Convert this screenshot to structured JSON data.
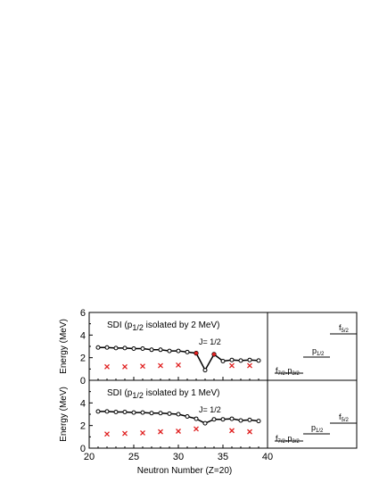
{
  "chart_data": [
    {
      "type": "line",
      "panel": "top",
      "title": "SDI (p1/2 isolated by 2 MeV)",
      "title_main": "SDI (p",
      "title_sub": "1/2",
      "title_rest": " isolated by 2 MeV)",
      "ylabel": "Energy (MeV)",
      "xlabel": "Neutron Number (Z=20)",
      "xlim": [
        20,
        40
      ],
      "ylim": [
        0,
        6
      ],
      "xticks": [
        "20",
        "25",
        "30",
        "35",
        "40"
      ],
      "yticks": [
        "0",
        "2",
        "4",
        "6"
      ],
      "annotation": "J= 1/2",
      "series": [
        {
          "marker": "circle-line",
          "x": [
            21,
            22,
            23,
            24,
            25,
            26,
            27,
            28,
            29,
            30,
            31,
            32,
            33,
            34,
            35,
            36,
            37,
            38,
            39
          ],
          "y": [
            2.9,
            2.9,
            2.85,
            2.85,
            2.8,
            2.8,
            2.7,
            2.7,
            2.6,
            2.6,
            2.5,
            2.4,
            0.9,
            2.3,
            1.7,
            1.8,
            1.75,
            1.8,
            1.75
          ]
        },
        {
          "marker": "red-x",
          "x": [
            22,
            24,
            26,
            28,
            30,
            36,
            38
          ],
          "y": [
            1.2,
            1.2,
            1.25,
            1.3,
            1.35,
            1.3,
            1.3
          ]
        },
        {
          "marker": "red-dot",
          "x": [
            32,
            34
          ],
          "y": [
            2.4,
            2.3
          ]
        }
      ]
    },
    {
      "type": "line",
      "panel": "bottom",
      "title": "SDI (p1/2 isolated by 1 MeV)",
      "title_main": "SDI (p",
      "title_sub": "1/2",
      "title_rest": " isolated by 1 MeV)",
      "ylabel": "Energy (MeV)",
      "xlabel": "Neutron Number (Z=20)",
      "xlim": [
        20,
        40
      ],
      "ylim": [
        0,
        6
      ],
      "xticks": [
        "20",
        "25",
        "30",
        "35",
        "40"
      ],
      "yticks": [
        "0",
        "2",
        "4"
      ],
      "annotation": "J= 1/2",
      "series": [
        {
          "marker": "circle-line",
          "x": [
            21,
            22,
            23,
            24,
            25,
            26,
            27,
            28,
            29,
            30,
            31,
            32,
            33,
            34,
            35,
            36,
            37,
            38,
            39
          ],
          "y": [
            3.25,
            3.25,
            3.2,
            3.2,
            3.15,
            3.15,
            3.1,
            3.1,
            3.05,
            3.0,
            2.8,
            2.6,
            2.2,
            2.55,
            2.55,
            2.6,
            2.45,
            2.5,
            2.4
          ]
        },
        {
          "marker": "red-x",
          "x": [
            22,
            24,
            26,
            28,
            30,
            32,
            36,
            38
          ],
          "y": [
            1.25,
            1.3,
            1.35,
            1.45,
            1.5,
            1.7,
            1.55,
            1.45
          ]
        }
      ]
    }
  ],
  "levels": {
    "top": [
      {
        "label_main": "f",
        "label_sub": "7/2",
        "label_mid": ",p",
        "label_sub2": "3/2",
        "energy": 0
      },
      {
        "label_main": "p",
        "label_sub": "1/2",
        "energy": 2
      },
      {
        "label_main": "f",
        "label_sub": "5/2",
        "energy": 4
      }
    ],
    "bottom": [
      {
        "label_main": "f",
        "label_sub": "7/2",
        "label_mid": ",p",
        "label_sub2": "3/2",
        "energy": 0
      },
      {
        "label_main": "p",
        "label_sub": "1/2",
        "energy": 1
      },
      {
        "label_main": "f",
        "label_sub": "5/2",
        "energy": 2
      }
    ]
  }
}
